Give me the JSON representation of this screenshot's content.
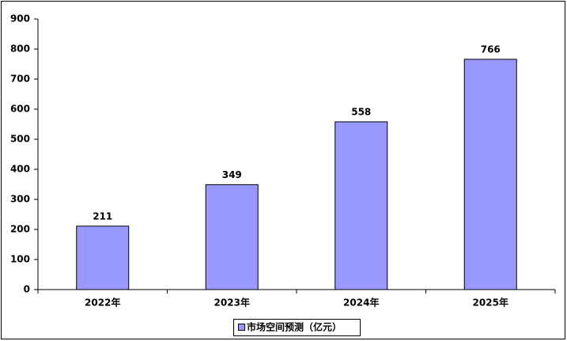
{
  "chart_data": {
    "type": "bar",
    "categories": [
      "2022年",
      "2023年",
      "2024年",
      "2025年"
    ],
    "series": [
      {
        "name": "市场空间预测（亿元）",
        "color": "#9999ff",
        "values": [
          211,
          349,
          558,
          766
        ]
      }
    ],
    "ylim": [
      0,
      900
    ],
    "yticks": [
      0,
      100,
      200,
      300,
      400,
      500,
      600,
      700,
      800,
      900
    ],
    "legend": "bottom",
    "data_labels": true
  }
}
